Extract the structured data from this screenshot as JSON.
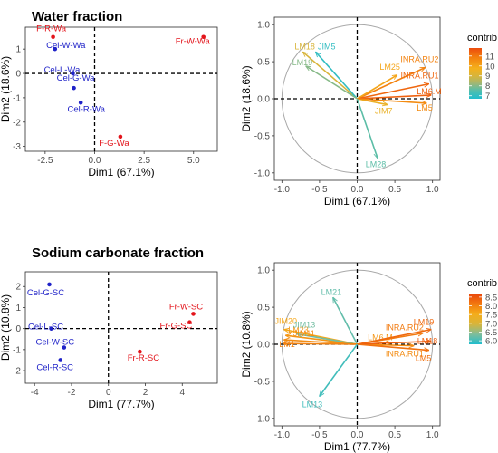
{
  "sections": [
    {
      "title": "Water fraction"
    },
    {
      "title": "Sodium carbonate fraction"
    }
  ],
  "colors": {
    "cellulose": "#1f22c8",
    "fruit": "#e3141b",
    "axis_line": "#000000",
    "grid": "#e6e6e6",
    "circle": "#a8a8a8"
  },
  "chart_data": [
    {
      "id": "water-scores",
      "type": "scatter",
      "xlabel": "Dim1 (67.1%)",
      "ylabel": "Dim2 (18.6%)",
      "xlim": [
        -3.5,
        6.2
      ],
      "ylim": [
        -3.2,
        1.9
      ],
      "xticks": [
        -2.5,
        0.0,
        2.5,
        5.0
      ],
      "xtick_labels": [
        "-2.5",
        "0.0",
        "2.5",
        "5.0"
      ],
      "yticks": [
        1,
        0,
        -1,
        -2,
        -3
      ],
      "ytick_labels": [
        "1",
        "0",
        "-1",
        "-2",
        "-3"
      ],
      "points": [
        {
          "label": "F-R-Wa",
          "x": -2.1,
          "y": 1.5,
          "group": "fruit"
        },
        {
          "label": "Cel-W-Wa",
          "x": -2.0,
          "y": 1.0,
          "group": "cellulose"
        },
        {
          "label": "Cel-L-Wa",
          "x": -1.1,
          "y": 0.0,
          "group": "cellulose"
        },
        {
          "label": "Cel-G-Wa",
          "x": -1.05,
          "y": -0.6,
          "group": "cellulose"
        },
        {
          "label": "Cel-R-Wa",
          "x": -0.7,
          "y": -1.2,
          "group": "cellulose"
        },
        {
          "label": "F-G-Wa",
          "x": 1.3,
          "y": -2.6,
          "group": "fruit"
        },
        {
          "label": "Fr-W-Wa",
          "x": 5.5,
          "y": 1.5,
          "group": "fruit"
        }
      ]
    },
    {
      "id": "water-loadings",
      "type": "vector",
      "xlabel": "Dim1 (67.1%)",
      "ylabel": "Dim2 (18.6%)",
      "xlim": [
        -1.1,
        1.1
      ],
      "ylim": [
        -1.1,
        1.1
      ],
      "xticks": [
        -1.0,
        -0.5,
        0.0,
        0.5,
        1.0
      ],
      "xtick_labels": [
        "-1.0",
        "-0.5",
        "0.0",
        "0.5",
        "1.0"
      ],
      "yticks": [
        1.0,
        0.5,
        0.0,
        -0.5,
        -1.0
      ],
      "ytick_labels": [
        "1.0",
        "0.5",
        "0.0",
        "-0.5",
        "-1.0"
      ],
      "legend": {
        "title": "contrib",
        "ticks": [
          "11",
          "10",
          "9",
          "8",
          "7"
        ],
        "tick_values": [
          11,
          10,
          9,
          8,
          7
        ],
        "min": 6.7,
        "max": 11.8,
        "placement": "right"
      },
      "vectors": [
        {
          "label": "LM18",
          "x": -0.72,
          "y": 0.63,
          "contrib": 9.0
        },
        {
          "label": "JIM5",
          "x": -0.55,
          "y": 0.63,
          "contrib": 7.0
        },
        {
          "label": "LM19",
          "x": -0.68,
          "y": 0.44,
          "contrib": 8.0
        },
        {
          "label": "INRA.RU2",
          "x": 0.9,
          "y": 0.42,
          "contrib": 10.8
        },
        {
          "label": "LM25",
          "x": 0.53,
          "y": 0.32,
          "contrib": 10.0
        },
        {
          "label": "INRA.RU1",
          "x": 0.95,
          "y": 0.2,
          "contrib": 11.3
        },
        {
          "label": "LM6.M",
          "x": 0.98,
          "y": 0.05,
          "contrib": 11.4
        },
        {
          "label": "JIM7",
          "x": 0.4,
          "y": -0.08,
          "contrib": 9.5
        },
        {
          "label": "LM5",
          "x": 0.92,
          "y": -0.06,
          "contrib": 10.6
        },
        {
          "label": "LM28",
          "x": 0.27,
          "y": -0.8,
          "contrib": 7.6
        }
      ]
    },
    {
      "id": "sodium-scores",
      "type": "scatter",
      "xlabel": "Dim1 (77.7%)",
      "ylabel": "Dim2 (10.8%)",
      "xlim": [
        -4.5,
        5.9
      ],
      "ylim": [
        -2.6,
        2.7
      ],
      "xticks": [
        -4,
        -2,
        0,
        2,
        4
      ],
      "xtick_labels": [
        "-4",
        "-2",
        "0",
        "2",
        "4"
      ],
      "yticks": [
        2,
        1,
        0,
        -1,
        -2
      ],
      "ytick_labels": [
        "2",
        "1",
        "0",
        "-1",
        "-2"
      ],
      "points": [
        {
          "label": "Cel-G-SC",
          "x": -3.2,
          "y": 2.1,
          "group": "cellulose"
        },
        {
          "label": "Cel-L-SC",
          "x": -3.1,
          "y": 0.0,
          "group": "cellulose"
        },
        {
          "label": "Cel-W-SC",
          "x": -2.4,
          "y": -0.9,
          "group": "cellulose"
        },
        {
          "label": "Cel-R-SC",
          "x": -2.6,
          "y": -1.5,
          "group": "cellulose"
        },
        {
          "label": "Fr-R-SC",
          "x": 1.7,
          "y": -1.1,
          "group": "fruit"
        },
        {
          "label": "Fr-G-SC",
          "x": 4.4,
          "y": 0.3,
          "group": "fruit"
        },
        {
          "label": "Fr-W-SC",
          "x": 4.6,
          "y": 0.7,
          "group": "fruit"
        }
      ]
    },
    {
      "id": "sodium-loadings",
      "type": "vector",
      "xlabel": "Dim1 (77.7%)",
      "ylabel": "Dim2 (10.8%)",
      "xlim": [
        -1.1,
        1.1
      ],
      "ylim": [
        -1.1,
        1.1
      ],
      "xticks": [
        -1.0,
        -0.5,
        0.0,
        0.5,
        1.0
      ],
      "xtick_labels": [
        "-1.0",
        "-0.5",
        "0.0",
        "0.5",
        "1.0"
      ],
      "yticks": [
        1.0,
        0.5,
        0.0,
        -0.5,
        -1.0
      ],
      "ytick_labels": [
        "1.0",
        "0.5",
        "0.0",
        "-0.5",
        "-1.0"
      ],
      "legend": {
        "title": "contrib",
        "ticks": [
          "8.5",
          "8.0",
          "7.5",
          "7.0",
          "6.5",
          "6.0"
        ],
        "tick_values": [
          8.5,
          8.0,
          7.5,
          7.0,
          6.5,
          6.0
        ],
        "min": 5.8,
        "max": 8.7,
        "placement": "right"
      },
      "vectors": [
        {
          "label": "LM21",
          "x": -0.32,
          "y": 0.63,
          "contrib": 6.2
        },
        {
          "label": "JIM20",
          "x": -0.97,
          "y": 0.2,
          "contrib": 7.6
        },
        {
          "label": "LM23",
          "x": -0.95,
          "y": 0.12,
          "contrib": 7.8
        },
        {
          "label": "JIM13",
          "x": -0.8,
          "y": 0.14,
          "contrib": 6.3
        },
        {
          "label": "JIM11",
          "x": -0.97,
          "y": 0.06,
          "contrib": 7.9
        },
        {
          "label": "LM6.M",
          "x": 0.45,
          "y": 0.02,
          "contrib": 7.8
        },
        {
          "label": "LM1",
          "x": -0.98,
          "y": 0.01,
          "contrib": 8.0
        },
        {
          "label": "INRA.RU2",
          "x": 0.87,
          "y": 0.15,
          "contrib": 8.1
        },
        {
          "label": "INRA.RU1",
          "x": 0.75,
          "y": -0.02,
          "contrib": 7.9
        },
        {
          "label": "LM19",
          "x": 0.98,
          "y": 0.2,
          "contrib": 8.3
        },
        {
          "label": "LM18",
          "x": 0.98,
          "y": 0.04,
          "contrib": 8.4
        },
        {
          "label": "LM5",
          "x": 0.95,
          "y": -0.08,
          "contrib": 8.2
        },
        {
          "label": "LM13",
          "x": -0.5,
          "y": -0.7,
          "contrib": 6.0
        }
      ]
    }
  ]
}
